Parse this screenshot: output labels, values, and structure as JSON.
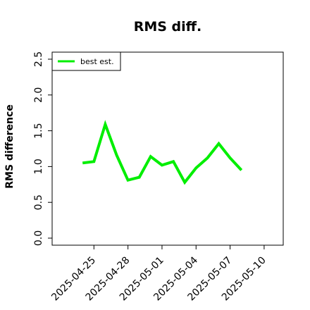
{
  "chart_data": {
    "type": "line",
    "title": "RMS diff.",
    "xlabel": "",
    "ylabel": "RMS difference",
    "ylim": [
      0,
      2.5
    ],
    "yticks": [
      0.0,
      0.5,
      1.0,
      1.5,
      2.0,
      2.5
    ],
    "ytick_labels": [
      "0.0",
      "0.5",
      "1.0",
      "1.5",
      "2.0",
      "2.5"
    ],
    "xlim": [
      "2025-04-22",
      "2025-05-11"
    ],
    "xticks": [
      "2025-04-25",
      "2025-04-28",
      "2025-05-01",
      "2025-05-04",
      "2025-05-07",
      "2025-05-10"
    ],
    "grid": false,
    "legend_position": "top-left",
    "series": [
      {
        "name": "best est.",
        "color": "#00ee00",
        "x": [
          "2025-04-24",
          "2025-04-25",
          "2025-04-26",
          "2025-04-27",
          "2025-04-28",
          "2025-04-29",
          "2025-04-30",
          "2025-05-01",
          "2025-05-02",
          "2025-05-03",
          "2025-05-04",
          "2025-05-05",
          "2025-05-06",
          "2025-05-07",
          "2025-05-08"
        ],
        "values": [
          1.05,
          1.07,
          1.59,
          1.16,
          0.81,
          0.85,
          1.14,
          1.02,
          1.07,
          0.78,
          0.98,
          1.12,
          1.32,
          1.12,
          0.95
        ]
      }
    ]
  }
}
